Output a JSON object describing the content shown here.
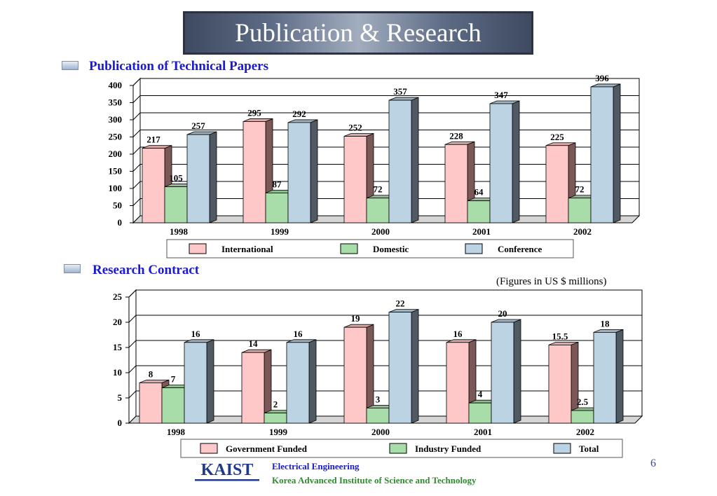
{
  "title": "Publication & Research",
  "section1": {
    "heading": "Publication of Technical Papers"
  },
  "section2": {
    "heading": "Research Contract",
    "note": "(Figures in  US $ millions)"
  },
  "footer": {
    "logo_text": "KAIST",
    "dept": "Electrical Engineering",
    "institute": "Korea Advanced Institute of Science and Technology",
    "page_number": "6"
  },
  "colors": {
    "pink": "#ffc8c8",
    "green": "#a8dca8",
    "blue": "#bcd3e4"
  },
  "chart_data": [
    {
      "type": "bar",
      "title": "Publication of Technical Papers",
      "categories": [
        "1998",
        "1999",
        "2000",
        "2001",
        "2002"
      ],
      "series": [
        {
          "name": "International",
          "values": [
            217,
            295,
            252,
            228,
            225
          ],
          "color": "#ffc8c8"
        },
        {
          "name": "Domestic",
          "values": [
            105,
            87,
            72,
            64,
            72
          ],
          "color": "#a8dca8"
        },
        {
          "name": "Conference",
          "values": [
            257,
            292,
            357,
            347,
            396
          ],
          "color": "#bcd3e4"
        }
      ],
      "yticks": [
        "0",
        "50",
        "100",
        "150",
        "200",
        "250",
        "300",
        "350",
        "400"
      ],
      "ylim": [
        0,
        400
      ],
      "grid": true,
      "legend": "bottom"
    },
    {
      "type": "bar",
      "title": "Research Contract",
      "categories": [
        "1998",
        "1999",
        "2000",
        "2001",
        "2002"
      ],
      "series": [
        {
          "name": "Government Funded",
          "values": [
            8,
            14,
            19,
            16,
            15.5
          ],
          "color": "#ffc8c8"
        },
        {
          "name": "Industry Funded",
          "values": [
            7,
            2,
            3,
            4,
            2.5
          ],
          "color": "#a8dca8"
        },
        {
          "name": "Total",
          "values": [
            16,
            16,
            22,
            20,
            18
          ],
          "color": "#bcd3e4"
        }
      ],
      "yticks": [
        "0",
        "5",
        "10",
        "15",
        "20",
        "25"
      ],
      "ylim": [
        0,
        25
      ],
      "grid": true,
      "legend": "bottom"
    }
  ]
}
